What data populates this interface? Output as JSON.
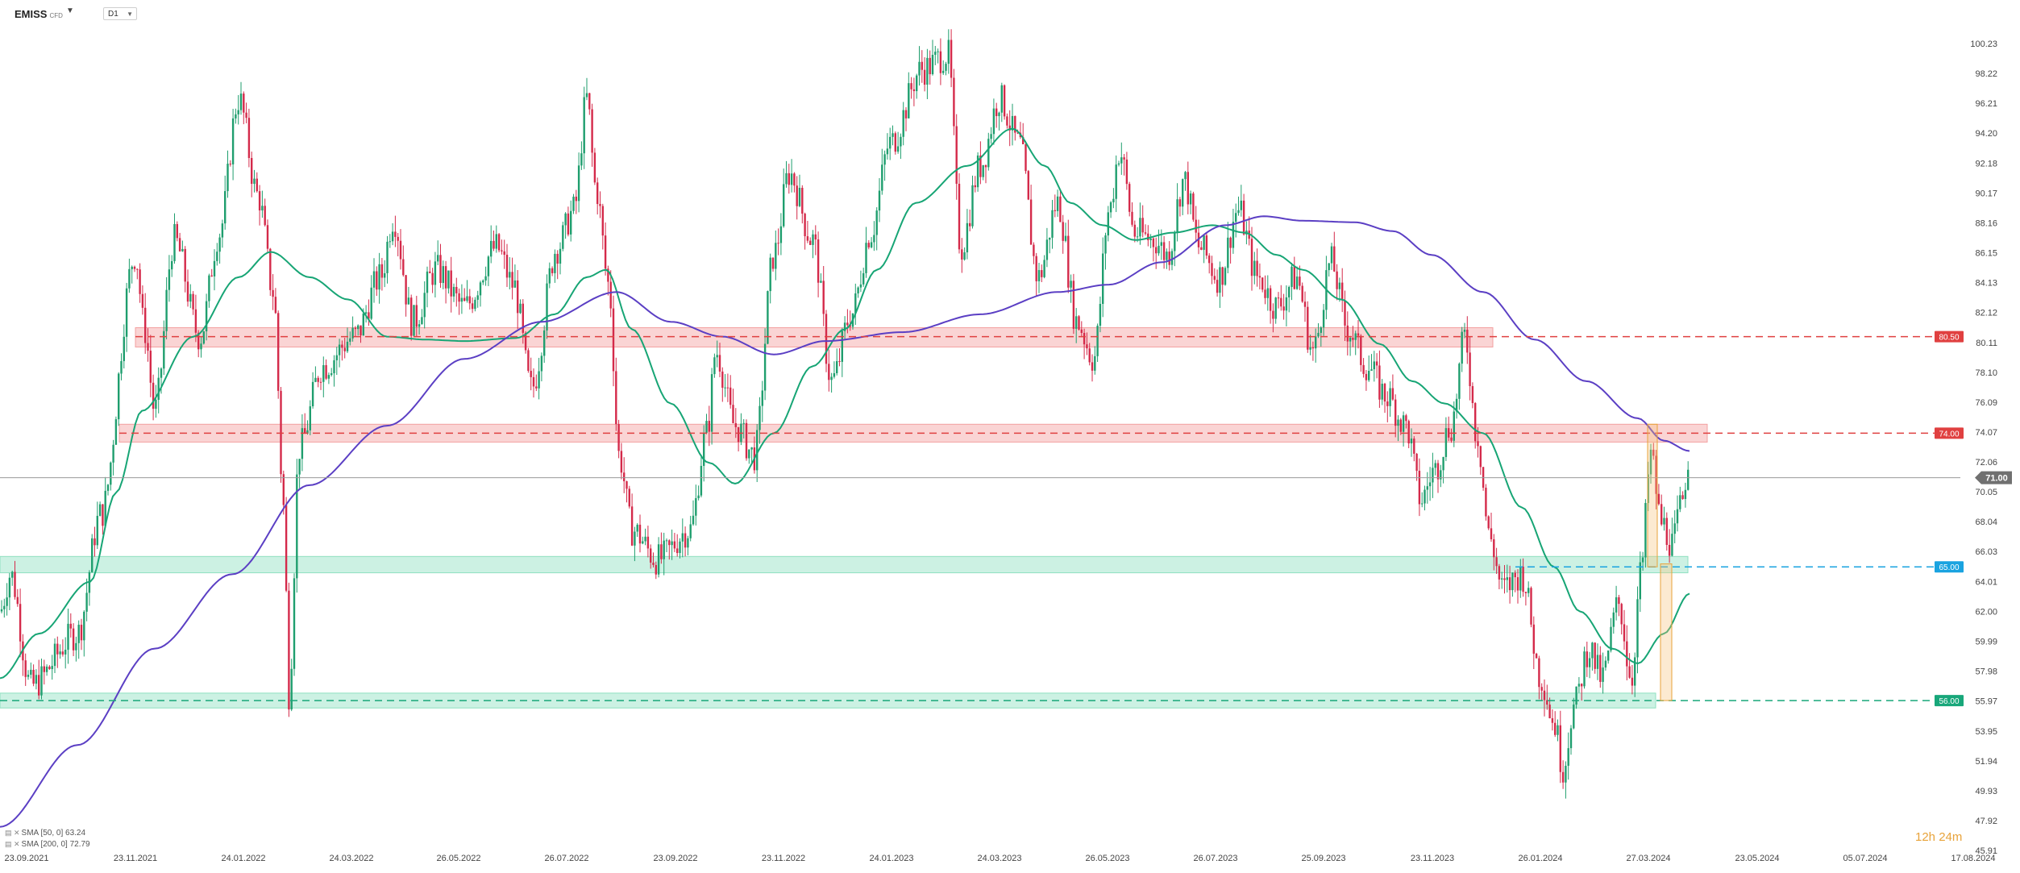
{
  "header": {
    "symbol": "EMISS",
    "symbol_type": "CFD",
    "timeframe": "D1"
  },
  "countdown": {
    "hours": "12h",
    "minutes": "24m"
  },
  "legend": [
    {
      "label": "SMA [50, 0] 63.24",
      "color": "#17a575"
    },
    {
      "label": "SMA [200, 0] 72.79",
      "color": "#5b3fc4"
    }
  ],
  "chart_data": {
    "type": "candlestick",
    "y_ticks": [
      "100.23",
      "98.22",
      "96.21",
      "94.20",
      "92.18",
      "90.17",
      "88.16",
      "86.15",
      "84.13",
      "82.12",
      "80.11",
      "78.10",
      "76.09",
      "74.07",
      "72.06",
      "70.05",
      "68.04",
      "66.03",
      "64.01",
      "62.00",
      "59.99",
      "57.98",
      "55.97",
      "53.95",
      "51.94",
      "49.93",
      "47.92",
      "45.91"
    ],
    "ylim": [
      45.91,
      100.23
    ],
    "x_ticks": [
      "23.09.2021",
      "23.11.2021",
      "24.01.2022",
      "24.03.2022",
      "26.05.2022",
      "26.07.2022",
      "23.09.2022",
      "23.11.2022",
      "24.01.2023",
      "24.03.2023",
      "26.05.2023",
      "26.07.2023",
      "25.09.2023",
      "23.11.2023",
      "26.01.2024",
      "27.03.2024",
      "23.05.2024",
      "05.07.2024",
      "17.08.2024"
    ],
    "current_price": "71.00",
    "current_value": 71.0,
    "price_key_points": [
      [
        0,
        62
      ],
      [
        8,
        64.5
      ],
      [
        24,
        57
      ],
      [
        60,
        60.5
      ],
      [
        78,
        68.5
      ],
      [
        105,
        86
      ],
      [
        112,
        81
      ],
      [
        120,
        75.5
      ],
      [
        135,
        87
      ],
      [
        155,
        80.5
      ],
      [
        170,
        87.5
      ],
      [
        185,
        96.5
      ],
      [
        200,
        90
      ],
      [
        212,
        83.5
      ],
      [
        220,
        69
      ],
      [
        224,
        56.5
      ],
      [
        232,
        73
      ],
      [
        250,
        78.5
      ],
      [
        275,
        80.5
      ],
      [
        295,
        84.5
      ],
      [
        305,
        88.5
      ],
      [
        320,
        81.5
      ],
      [
        338,
        85
      ],
      [
        360,
        82.5
      ],
      [
        385,
        86.5
      ],
      [
        398,
        84
      ],
      [
        412,
        77
      ],
      [
        432,
        86.5
      ],
      [
        445,
        89
      ],
      [
        455,
        96.5
      ],
      [
        462,
        90.5
      ],
      [
        472,
        84
      ],
      [
        480,
        72.5
      ],
      [
        490,
        67.5
      ],
      [
        510,
        65.5
      ],
      [
        535,
        67.5
      ],
      [
        548,
        74
      ],
      [
        555,
        79.5
      ],
      [
        570,
        74.5
      ],
      [
        585,
        72.5
      ],
      [
        600,
        86
      ],
      [
        612,
        91.5
      ],
      [
        630,
        87
      ],
      [
        645,
        77.5
      ],
      [
        660,
        82
      ],
      [
        675,
        87.5
      ],
      [
        690,
        93.5
      ],
      [
        715,
        98.5
      ],
      [
        735,
        99.5
      ],
      [
        745,
        86.5
      ],
      [
        760,
        92
      ],
      [
        775,
        96.5
      ],
      [
        790,
        93.5
      ],
      [
        805,
        84.5
      ],
      [
        820,
        89.5
      ],
      [
        835,
        81.5
      ],
      [
        848,
        79
      ],
      [
        860,
        89
      ],
      [
        868,
        93
      ],
      [
        880,
        87.5
      ],
      [
        895,
        87
      ],
      [
        905,
        86
      ],
      [
        918,
        91
      ],
      [
        930,
        86.5
      ],
      [
        945,
        84.5
      ],
      [
        960,
        89
      ],
      [
        975,
        84.5
      ],
      [
        990,
        82.5
      ],
      [
        1005,
        84.5
      ],
      [
        1018,
        79.5
      ],
      [
        1032,
        85.5
      ],
      [
        1045,
        81
      ],
      [
        1060,
        78.5
      ],
      [
        1075,
        76.5
      ],
      [
        1090,
        74.5
      ],
      [
        1102,
        69.5
      ],
      [
        1112,
        71.5
      ],
      [
        1125,
        74.5
      ],
      [
        1136,
        80.5
      ],
      [
        1145,
        74
      ],
      [
        1155,
        67
      ],
      [
        1165,
        63.5
      ],
      [
        1180,
        64.5
      ],
      [
        1195,
        57.5
      ],
      [
        1205,
        54.5
      ],
      [
        1212,
        51.5
      ],
      [
        1220,
        55.5
      ],
      [
        1232,
        59.5
      ],
      [
        1242,
        57.5
      ],
      [
        1255,
        62.5
      ],
      [
        1265,
        57.5
      ],
      [
        1272,
        64.5
      ],
      [
        1280,
        72.5
      ],
      [
        1288,
        68
      ],
      [
        1297,
        66.5
      ],
      [
        1303,
        69
      ],
      [
        1310,
        72.5
      ]
    ],
    "sma50_key_points": [
      [
        0,
        57.5
      ],
      [
        30,
        60.5
      ],
      [
        70,
        64
      ],
      [
        90,
        70
      ],
      [
        110,
        75.5
      ],
      [
        150,
        80.5
      ],
      [
        185,
        84.5
      ],
      [
        210,
        86.2
      ],
      [
        240,
        84.5
      ],
      [
        270,
        83
      ],
      [
        300,
        80.5
      ],
      [
        330,
        80.3
      ],
      [
        360,
        80.2
      ],
      [
        400,
        80.4
      ],
      [
        430,
        82
      ],
      [
        455,
        84.5
      ],
      [
        470,
        85
      ],
      [
        490,
        81
      ],
      [
        520,
        76
      ],
      [
        550,
        72
      ],
      [
        570,
        70.6
      ],
      [
        600,
        74
      ],
      [
        630,
        78.5
      ],
      [
        655,
        81
      ],
      [
        680,
        85
      ],
      [
        710,
        89.5
      ],
      [
        750,
        92
      ],
      [
        785,
        94.5
      ],
      [
        810,
        92
      ],
      [
        830,
        89.5
      ],
      [
        855,
        88
      ],
      [
        880,
        87
      ],
      [
        910,
        87.5
      ],
      [
        940,
        88
      ],
      [
        965,
        87.5
      ],
      [
        990,
        86
      ],
      [
        1010,
        85
      ],
      [
        1040,
        83
      ],
      [
        1070,
        80
      ],
      [
        1095,
        77.5
      ],
      [
        1120,
        76
      ],
      [
        1150,
        74
      ],
      [
        1180,
        69
      ],
      [
        1205,
        65
      ],
      [
        1225,
        62
      ],
      [
        1250,
        59.5
      ],
      [
        1270,
        58.5
      ],
      [
        1290,
        60.5
      ],
      [
        1310,
        63.2
      ]
    ],
    "sma200_key_points": [
      [
        0,
        47.5
      ],
      [
        60,
        53
      ],
      [
        120,
        59.5
      ],
      [
        180,
        64.5
      ],
      [
        240,
        70.5
      ],
      [
        300,
        74.5
      ],
      [
        360,
        79
      ],
      [
        420,
        81.5
      ],
      [
        478,
        83.5
      ],
      [
        520,
        81.5
      ],
      [
        560,
        80.5
      ],
      [
        600,
        79.3
      ],
      [
        640,
        80.2
      ],
      [
        700,
        80.8
      ],
      [
        760,
        82
      ],
      [
        820,
        83.5
      ],
      [
        860,
        84
      ],
      [
        900,
        85.5
      ],
      [
        950,
        88
      ],
      [
        980,
        88.6
      ],
      [
        1010,
        88.3
      ],
      [
        1050,
        88.2
      ],
      [
        1080,
        87.6
      ],
      [
        1110,
        86
      ],
      [
        1150,
        83.5
      ],
      [
        1190,
        80.3
      ],
      [
        1230,
        77.5
      ],
      [
        1270,
        75
      ],
      [
        1290,
        73.5
      ],
      [
        1310,
        72.8
      ]
    ],
    "levels": [
      {
        "label": "80.50",
        "value": 80.5,
        "color": "#e04040"
      },
      {
        "label": "74.00",
        "value": 74.0,
        "color": "#e04040"
      },
      {
        "label": "65.00",
        "value": 65.0,
        "color": "#1aa3e0"
      },
      {
        "label": "56.00",
        "value": 56.0,
        "color": "#18a77a"
      }
    ],
    "zones": [
      {
        "low": 79.8,
        "high": 81.1,
        "color": "#f3a0a0"
      },
      {
        "low": 73.4,
        "high": 74.6,
        "color": "#f3a0a0"
      },
      {
        "low": 64.6,
        "high": 65.7,
        "color": "#8fe0c0"
      },
      {
        "low": 55.5,
        "high": 56.5,
        "color": "#8fe0c0"
      }
    ],
    "grid": false
  }
}
